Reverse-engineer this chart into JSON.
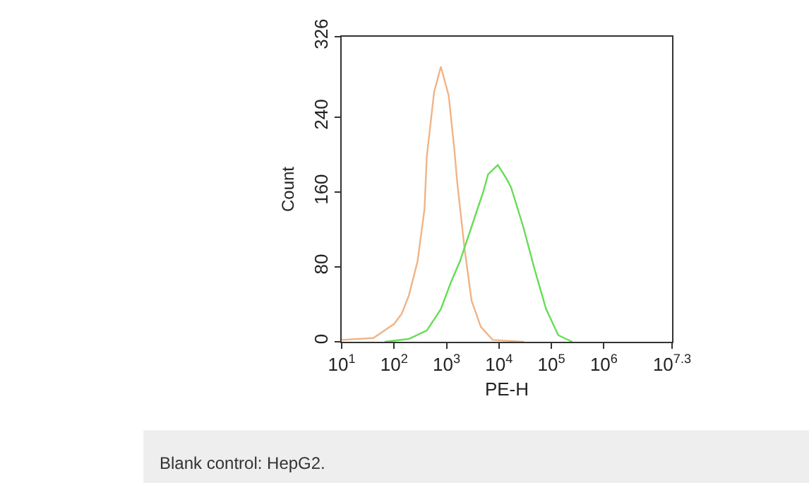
{
  "chart_data": {
    "type": "line",
    "xlabel": "PE-H",
    "ylabel": "Count",
    "series": [
      {
        "color": "#f0b486",
        "x": [
          10,
          40,
          100,
          140,
          190,
          280,
          380,
          420,
          580,
          780,
          1100,
          1400,
          1600,
          2200,
          3000,
          4500,
          7600,
          30000
        ],
        "values": [
          2,
          4,
          19,
          30,
          49,
          86,
          142,
          198,
          267,
          294,
          263,
          207,
          170,
          100,
          44,
          16,
          2,
          0
        ]
      },
      {
        "color": "#66dd55",
        "x": [
          66,
          190,
          420,
          780,
          1200,
          1800,
          3000,
          5000,
          6200,
          9500,
          14000,
          17000,
          29000,
          48000,
          79000,
          135000,
          250000
        ],
        "values": [
          0,
          3,
          12,
          35,
          63,
          86,
          123,
          160,
          179,
          189,
          174,
          165,
          123,
          77,
          35,
          7,
          0
        ]
      }
    ],
    "log": "x",
    "xlim": [
      10,
      19952623
    ],
    "xticks": [
      {
        "value": 10,
        "label": "10$^{1}$"
      },
      {
        "value": 100,
        "label": "10$^{2}$"
      },
      {
        "value": 1000,
        "label": "10$^{3}$"
      },
      {
        "value": 10000,
        "label": "10$^{4}$"
      },
      {
        "value": 100000,
        "label": "10$^{5}$"
      },
      {
        "value": 1000000,
        "label": "10$^{6}$"
      },
      {
        "value": 19952623,
        "label": "10$^{7.3}$"
      }
    ],
    "ylim": [
      0,
      326
    ],
    "yticks": [
      0,
      80,
      160,
      240,
      326
    ],
    "annotations": [
      "Blank control: HepG2."
    ]
  }
}
